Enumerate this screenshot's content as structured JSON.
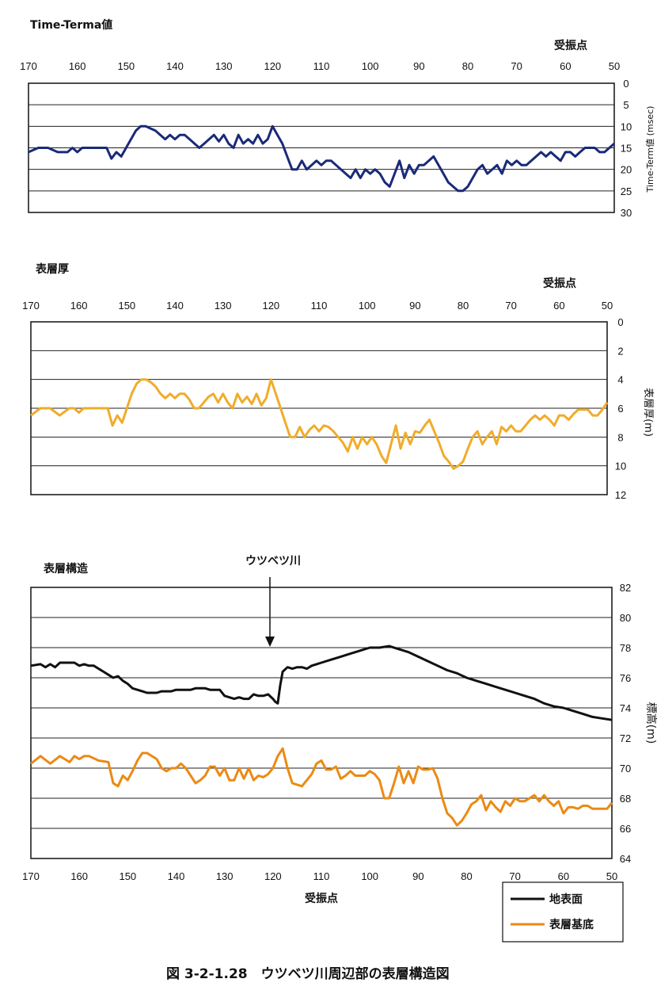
{
  "colors": {
    "navy": "#1a2a78",
    "gold": "#f0ac2a",
    "orange": "#eb8a14",
    "black": "#111111"
  },
  "caption": "図 3-2-1.28　ウツベツ川周辺部の表層構造図",
  "chart_data": [
    {
      "type": "line",
      "title": "Time-Terma値",
      "xlabel": "受振点",
      "ylabel": "Time-Term値 (msec)",
      "x_ticks": [
        170,
        160,
        150,
        140,
        130,
        120,
        110,
        100,
        90,
        80,
        70,
        60,
        50
      ],
      "xlim": [
        170,
        50
      ],
      "ylim": [
        0,
        30
      ],
      "y_inverted": true,
      "y_ticks": [
        0,
        5,
        10,
        15,
        20,
        25,
        30
      ],
      "grid": true,
      "series": [
        {
          "color": "#1a2a78",
          "x": [
            170,
            168,
            166,
            164,
            162,
            161,
            160,
            159,
            158,
            156,
            154,
            153,
            152,
            151,
            150,
            149,
            148,
            147,
            146,
            145,
            144,
            143,
            142,
            141,
            140,
            139,
            138,
            137,
            136,
            135,
            134,
            133,
            132,
            131,
            130,
            129,
            128,
            127,
            126,
            125,
            124,
            123,
            122,
            121,
            120,
            119,
            118,
            117,
            116,
            115,
            114,
            113,
            112,
            111,
            110,
            109,
            108,
            107,
            106,
            105,
            104,
            103,
            102,
            101,
            100,
            99,
            98,
            97,
            96,
            95,
            94,
            93,
            92,
            91,
            90,
            89,
            88,
            87,
            86,
            85,
            84,
            83,
            82,
            81,
            80,
            79,
            78,
            77,
            76,
            75,
            74,
            73,
            72,
            71,
            70,
            69,
            68,
            67,
            66,
            65,
            64,
            63,
            62,
            61,
            60,
            59,
            58,
            57,
            56,
            55,
            54,
            53,
            52,
            51,
            50
          ],
          "y": [
            16,
            15,
            15,
            16,
            16,
            15,
            16,
            15,
            15,
            15,
            15,
            17.5,
            16,
            17,
            15,
            13,
            11,
            10,
            10,
            10.5,
            11,
            12,
            13,
            12,
            13,
            12,
            12,
            13,
            14,
            15,
            14,
            13,
            12,
            13.5,
            12,
            14,
            15,
            12,
            14,
            13,
            14,
            12,
            14,
            13,
            10,
            12,
            14,
            17,
            20,
            20,
            18,
            20,
            19,
            18,
            19,
            18,
            18,
            19,
            20,
            21,
            22,
            20,
            22,
            20,
            21,
            20,
            21,
            23,
            24,
            21,
            18,
            22,
            19,
            21,
            19,
            19,
            18,
            17,
            19,
            21,
            23,
            24,
            25,
            25,
            24,
            22,
            20,
            19,
            21,
            20,
            19,
            21,
            18,
            19,
            18,
            19,
            19,
            18,
            17,
            16,
            17,
            16,
            17,
            18,
            16,
            16,
            17,
            16,
            15,
            15,
            15,
            16,
            16,
            15,
            14
          ]
        }
      ]
    },
    {
      "type": "line",
      "title": "表層厚",
      "xlabel": "受振点",
      "ylabel": "表層厚(m)",
      "x_ticks": [
        170,
        160,
        150,
        140,
        130,
        120,
        110,
        100,
        90,
        80,
        70,
        60,
        50
      ],
      "xlim": [
        170,
        50
      ],
      "ylim": [
        0,
        12
      ],
      "y_inverted": true,
      "y_ticks": [
        0,
        2,
        4,
        6,
        8,
        10,
        12
      ],
      "grid": true,
      "series": [
        {
          "color": "#f0ac2a",
          "x": [
            170,
            168,
            166,
            164,
            162,
            161,
            160,
            159,
            158,
            156,
            154,
            153,
            152,
            151,
            150,
            149,
            148,
            147,
            146,
            145,
            144,
            143,
            142,
            141,
            140,
            139,
            138,
            137,
            136,
            135,
            134,
            133,
            132,
            131,
            130,
            129,
            128,
            127,
            126,
            125,
            124,
            123,
            122,
            121,
            120,
            119,
            118,
            117,
            116,
            115,
            114,
            113,
            112,
            111,
            110,
            109,
            108,
            107,
            106,
            105,
            104,
            103,
            102,
            101,
            100,
            99,
            98,
            97,
            96,
            95,
            94,
            93,
            92,
            91,
            90,
            89,
            88,
            87,
            86,
            85,
            84,
            83,
            82,
            81,
            80,
            79,
            78,
            77,
            76,
            75,
            74,
            73,
            72,
            71,
            70,
            69,
            68,
            67,
            66,
            65,
            64,
            63,
            62,
            61,
            60,
            59,
            58,
            57,
            56,
            55,
            54,
            53,
            52,
            51,
            50
          ],
          "y": [
            6.5,
            6,
            6,
            6.5,
            6,
            6,
            6.3,
            6,
            6,
            6,
            6,
            7.2,
            6.5,
            7,
            6,
            5,
            4.3,
            4,
            4,
            4.2,
            4.5,
            5,
            5.3,
            5,
            5.3,
            5,
            5,
            5.4,
            6,
            6,
            5.6,
            5.2,
            5,
            5.6,
            5,
            5.6,
            6,
            5,
            5.6,
            5.2,
            5.7,
            5,
            5.8,
            5.3,
            4,
            5,
            6,
            7,
            8,
            8,
            7.3,
            8,
            7.5,
            7.2,
            7.6,
            7.2,
            7.3,
            7.6,
            8,
            8.4,
            9,
            8,
            8.8,
            8,
            8.5,
            8,
            8.5,
            9.3,
            9.8,
            8.5,
            7.2,
            8.8,
            7.7,
            8.5,
            7.6,
            7.7,
            7.2,
            6.8,
            7.6,
            8.4,
            9.3,
            9.7,
            10.2,
            10,
            9.7,
            8.8,
            8,
            7.6,
            8.5,
            8,
            7.6,
            8.5,
            7.3,
            7.6,
            7.2,
            7.6,
            7.6,
            7.2,
            6.8,
            6.5,
            6.8,
            6.5,
            6.8,
            7.2,
            6.5,
            6.5,
            6.8,
            6.4,
            6.1,
            6.1,
            6.1,
            6.5,
            6.5,
            6.1,
            5.6
          ]
        }
      ]
    },
    {
      "type": "line",
      "title": "表層構造",
      "xlabel": "受振点",
      "ylabel": "標高(m)",
      "x_ticks": [
        170,
        160,
        150,
        140,
        130,
        120,
        110,
        100,
        90,
        80,
        70,
        60,
        50
      ],
      "xlim": [
        170,
        50
      ],
      "ylim": [
        64,
        82
      ],
      "y_ticks": [
        64,
        66,
        68,
        70,
        72,
        74,
        76,
        78,
        80,
        82
      ],
      "grid": true,
      "annotation": "ウツベツ川",
      "legend": [
        "地表面",
        "表層基底"
      ],
      "legend_position": "bottom-right",
      "series": [
        {
          "name": "地表面",
          "color": "#111111",
          "x": [
            170,
            168,
            167,
            166,
            165,
            164,
            163,
            162,
            161,
            160,
            159,
            158,
            157,
            156,
            155,
            154,
            153,
            152,
            151,
            150,
            149,
            148,
            147,
            146,
            145,
            144,
            143,
            142,
            141,
            140,
            139,
            138,
            137,
            136,
            135,
            134,
            133,
            132,
            131,
            130,
            129,
            128,
            127,
            126,
            125,
            124,
            123,
            122,
            121,
            120,
            119.5,
            119,
            118.5,
            118,
            117,
            116,
            115,
            114,
            113,
            112,
            111,
            110,
            108,
            106,
            104,
            102,
            100,
            98,
            96,
            94,
            92,
            90,
            88,
            86,
            84,
            82,
            80,
            78,
            76,
            74,
            72,
            70,
            68,
            66,
            64,
            62,
            60,
            58,
            56,
            54,
            52,
            50
          ],
          "y": [
            76.8,
            76.9,
            76.7,
            76.9,
            76.7,
            77,
            77,
            77,
            77,
            76.8,
            76.9,
            76.8,
            76.8,
            76.6,
            76.4,
            76.2,
            76,
            76.1,
            75.8,
            75.6,
            75.3,
            75.2,
            75.1,
            75,
            75,
            75,
            75.1,
            75.1,
            75.1,
            75.2,
            75.2,
            75.2,
            75.2,
            75.3,
            75.3,
            75.3,
            75.2,
            75.2,
            75.2,
            74.8,
            74.7,
            74.6,
            74.7,
            74.6,
            74.6,
            74.9,
            74.8,
            74.8,
            74.9,
            74.6,
            74.4,
            74.3,
            75.5,
            76.4,
            76.7,
            76.6,
            76.7,
            76.7,
            76.6,
            76.8,
            76.9,
            77,
            77.2,
            77.4,
            77.6,
            77.8,
            78,
            78,
            78.1,
            77.9,
            77.7,
            77.4,
            77.1,
            76.8,
            76.5,
            76.3,
            76,
            75.8,
            75.6,
            75.4,
            75.2,
            75,
            74.8,
            74.6,
            74.3,
            74.1,
            74,
            73.8,
            73.6,
            73.4,
            73.3,
            73.2
          ]
        },
        {
          "name": "表層基底",
          "color": "#eb8a14",
          "x": [
            170,
            168,
            166,
            164,
            162,
            161,
            160,
            159,
            158,
            156,
            154,
            153,
            152,
            151,
            150,
            149,
            148,
            147,
            146,
            145,
            144,
            143,
            142,
            141,
            140,
            139,
            138,
            137,
            136,
            135,
            134,
            133,
            132,
            131,
            130,
            129,
            128,
            127,
            126,
            125,
            124,
            123,
            122,
            121,
            120,
            119,
            118,
            117,
            116,
            115,
            114,
            113,
            112,
            111,
            110,
            109,
            108,
            107,
            106,
            105,
            104,
            103,
            102,
            101,
            100,
            99,
            98,
            97,
            96,
            95,
            94,
            93,
            92,
            91,
            90,
            89,
            88,
            87,
            86,
            85,
            84,
            83,
            82,
            81,
            80,
            79,
            78,
            77,
            76,
            75,
            74,
            73,
            72,
            71,
            70,
            69,
            68,
            67,
            66,
            65,
            64,
            63,
            62,
            61,
            60,
            59,
            58,
            57,
            56,
            55,
            54,
            53,
            52,
            51,
            50
          ],
          "y": [
            70.3,
            70.8,
            70.3,
            70.8,
            70.4,
            70.8,
            70.6,
            70.8,
            70.8,
            70.5,
            70.4,
            69,
            68.8,
            69.5,
            69.2,
            69.8,
            70.5,
            71,
            71,
            70.8,
            70.6,
            70,
            69.8,
            70,
            70,
            70.3,
            70,
            69.5,
            69,
            69.2,
            69.5,
            70.1,
            70.1,
            69.5,
            70,
            69.2,
            69.2,
            70,
            69.3,
            70,
            69.2,
            69.5,
            69.4,
            69.6,
            70,
            70.8,
            71.3,
            70,
            69,
            68.9,
            68.8,
            69.2,
            69.6,
            70.3,
            70.5,
            69.9,
            69.9,
            70.1,
            69.3,
            69.5,
            69.8,
            69.5,
            69.5,
            69.5,
            69.8,
            69.6,
            69.2,
            68,
            68,
            69,
            70.1,
            69,
            69.8,
            69,
            70.1,
            69.9,
            69.9,
            70,
            69.3,
            68,
            67,
            66.7,
            66.2,
            66.5,
            67,
            67.6,
            67.8,
            68.2,
            67.2,
            67.8,
            67.4,
            67.1,
            67.8,
            67.5,
            68,
            67.8,
            67.8,
            68,
            68.2,
            67.8,
            68.2,
            67.8,
            67.5,
            67.8,
            67,
            67.4,
            67.4,
            67.3,
            67.5,
            67.5,
            67.3,
            67.3,
            67.3,
            67.3,
            67.7
          ]
        }
      ]
    }
  ]
}
